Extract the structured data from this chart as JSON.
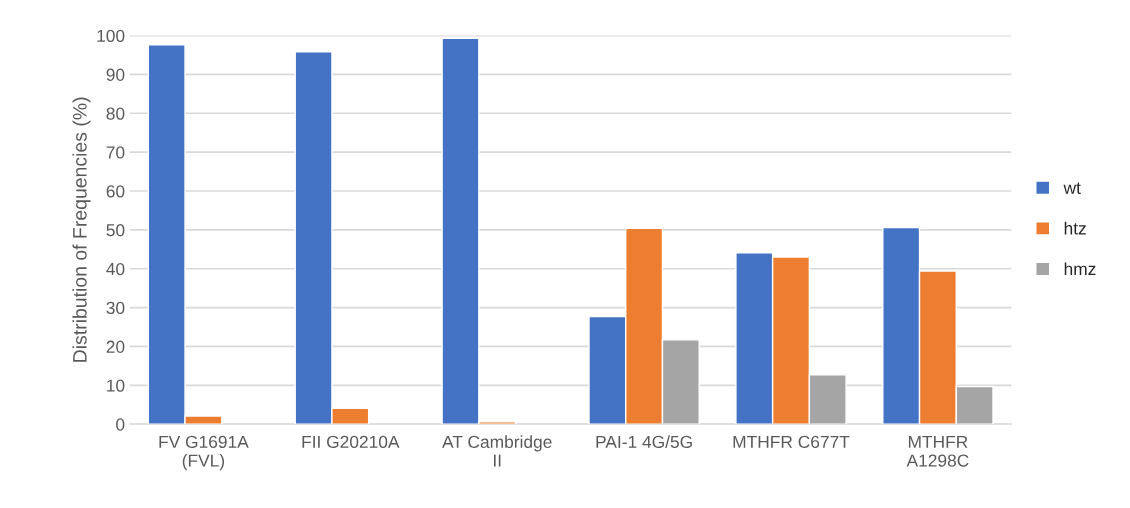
{
  "chart_data": {
    "type": "bar",
    "ylabel": "Distribution of Frequencies (%)",
    "categories": [
      "FV G1691A\n(FVL)",
      "FII G20210A",
      "AT Cambridge\nII",
      "PAI-1 4G/5G",
      "MTHFR C677T",
      "MTHFR\nA1298C"
    ],
    "series": [
      {
        "name": "wt",
        "color": "#4472c4",
        "values": [
          97.6,
          95.8,
          99.3,
          27.7,
          44.1,
          50.6
        ]
      },
      {
        "name": "htz",
        "color": "#ed7d31",
        "values": [
          2.1,
          4.1,
          0.6,
          50.4,
          43.0,
          39.4
        ]
      },
      {
        "name": "hmz",
        "color": "#a5a5a5",
        "values": [
          null,
          null,
          null,
          21.7,
          12.7,
          9.7
        ]
      }
    ],
    "ylim": [
      0,
      100
    ],
    "yticks": [
      0,
      10,
      20,
      30,
      40,
      50,
      60,
      70,
      80,
      90,
      100
    ],
    "grid": "y",
    "legend": "right"
  }
}
